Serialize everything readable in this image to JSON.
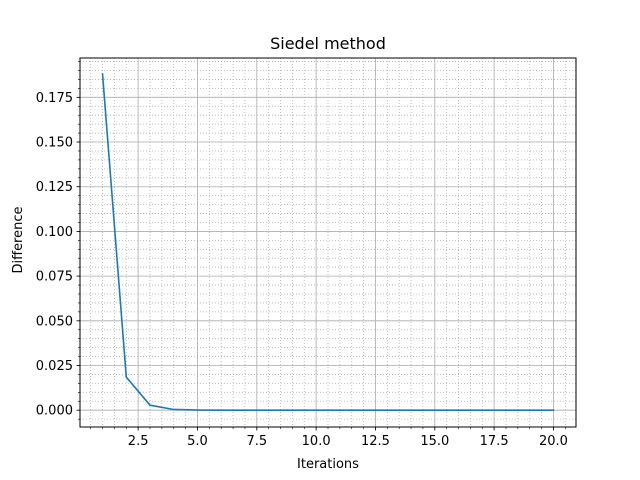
{
  "chart_data": {
    "type": "line",
    "title": "Siedel method",
    "xlabel": "Iterations",
    "ylabel": "Difference",
    "xlim": [
      0.05,
      20.95
    ],
    "ylim": [
      -0.0094,
      0.197
    ],
    "x_ticks": [
      2.5,
      5.0,
      7.5,
      10.0,
      12.5,
      15.0,
      17.5,
      20.0
    ],
    "x_tick_labels": [
      "2.5",
      "5.0",
      "7.5",
      "10.0",
      "12.5",
      "15.0",
      "17.5",
      "20.0"
    ],
    "y_ticks": [
      0.0,
      0.025,
      0.05,
      0.075,
      0.1,
      0.125,
      0.15,
      0.175
    ],
    "y_tick_labels": [
      "0.000",
      "0.025",
      "0.050",
      "0.075",
      "0.100",
      "0.125",
      "0.150",
      "0.175"
    ],
    "grid": true,
    "minor_grid": true,
    "series": [
      {
        "color": "#1f77b4",
        "x": [
          1,
          2,
          3,
          4,
          5,
          6,
          7,
          8,
          9,
          10,
          11,
          12,
          13,
          14,
          15,
          16,
          17,
          18,
          19,
          20
        ],
        "y": [
          0.188,
          0.0185,
          0.0028,
          0.0004,
          0.0001,
          2e-05,
          0,
          0,
          0,
          0,
          0,
          0,
          0,
          0,
          0,
          0,
          0,
          0,
          0,
          0
        ]
      }
    ]
  }
}
